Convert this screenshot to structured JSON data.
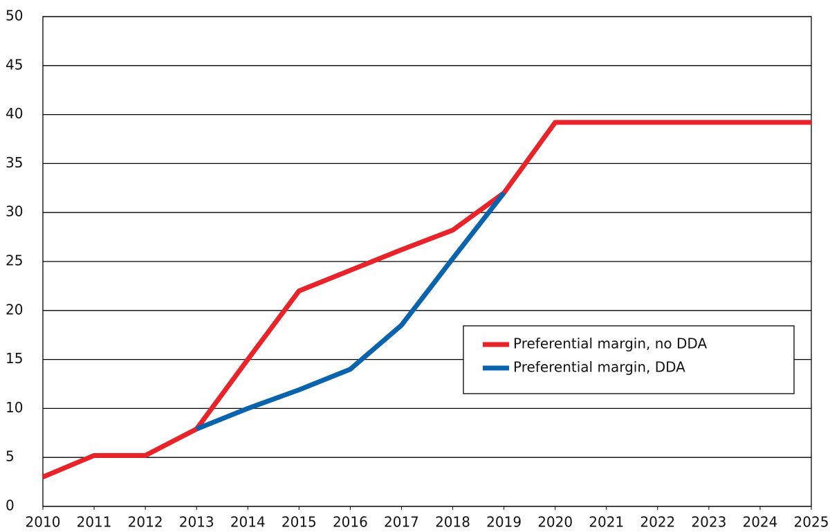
{
  "chart_data": {
    "type": "line",
    "x": [
      2010,
      2011,
      2012,
      2013,
      2014,
      2015,
      2016,
      2017,
      2018,
      2019,
      2020,
      2021,
      2022,
      2023,
      2024,
      2025
    ],
    "series": [
      {
        "name": "Preferential margin, no DDA",
        "color": "#e8232a",
        "values": [
          3,
          5.2,
          5.2,
          7.9,
          15,
          22,
          24.1,
          26.2,
          28.2,
          32,
          39.2,
          39.2,
          39.2,
          39.2,
          39.2,
          39.2
        ]
      },
      {
        "name": "Preferential margin, DDA",
        "color": "#0a63ad",
        "values": [
          null,
          null,
          null,
          7.9,
          10,
          11.9,
          14,
          18.5,
          25.3,
          32,
          null,
          null,
          null,
          null,
          null,
          null
        ]
      }
    ],
    "xlim": [
      2010,
      2025
    ],
    "xticks": [
      2010,
      2011,
      2012,
      2013,
      2014,
      2015,
      2016,
      2017,
      2018,
      2019,
      2020,
      2021,
      2022,
      2023,
      2024,
      2025
    ],
    "ylim": [
      0,
      50
    ],
    "yticks": [
      0,
      5,
      10,
      15,
      20,
      25,
      30,
      35,
      40,
      45,
      50
    ],
    "grid": true,
    "legend": "right"
  }
}
